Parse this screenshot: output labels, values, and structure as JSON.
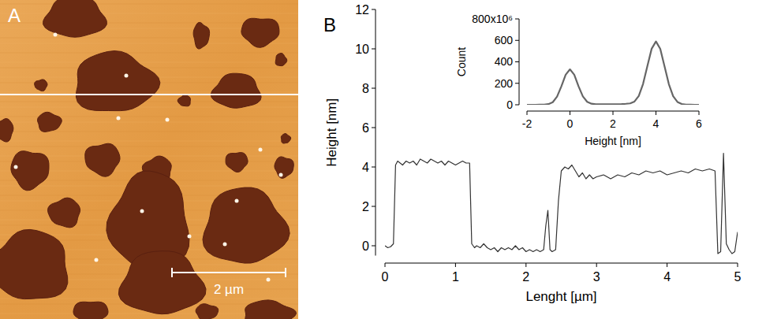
{
  "image": {
    "label": "A",
    "scale_bar": "2 µm"
  },
  "panel_label": "B",
  "chart_data": [
    {
      "type": "line",
      "x_label": "Lenght [µm]",
      "y_label": "Height [nm]",
      "x": [
        0,
        0.04,
        0.08,
        0.12,
        0.15,
        0.18,
        0.25,
        0.3,
        0.35,
        0.4,
        0.45,
        0.5,
        0.55,
        0.6,
        0.65,
        0.7,
        0.75,
        0.8,
        0.85,
        0.9,
        0.95,
        1.0,
        1.05,
        1.1,
        1.15,
        1.2,
        1.23,
        1.27,
        1.3,
        1.35,
        1.4,
        1.45,
        1.5,
        1.55,
        1.6,
        1.65,
        1.7,
        1.75,
        1.8,
        1.85,
        1.9,
        1.95,
        2.0,
        2.05,
        2.1,
        2.15,
        2.2,
        2.25,
        2.28,
        2.31,
        2.34,
        2.37,
        2.42,
        2.46,
        2.5,
        2.55,
        2.6,
        2.65,
        2.7,
        2.75,
        2.8,
        2.85,
        2.9,
        2.95,
        3.0,
        3.1,
        3.2,
        3.3,
        3.4,
        3.5,
        3.6,
        3.7,
        3.8,
        3.9,
        4.0,
        4.1,
        4.2,
        4.3,
        4.4,
        4.5,
        4.6,
        4.68,
        4.72,
        4.76,
        4.8,
        4.84,
        4.88,
        4.92,
        4.96,
        5.0
      ],
      "values": [
        0,
        -0.1,
        -0.05,
        0.1,
        4.1,
        4.3,
        4.1,
        4.3,
        4.2,
        4.3,
        4.1,
        4.4,
        4.3,
        4.2,
        4.4,
        4.3,
        4.2,
        4.3,
        4.1,
        4.3,
        4.2,
        4.1,
        4.2,
        4.3,
        4.2,
        4.2,
        0.1,
        -0.1,
        0,
        -0.1,
        0.1,
        -0.1,
        -0.2,
        -0.1,
        -0.3,
        -0.1,
        -0.2,
        -0.1,
        -0.2,
        0,
        -0.2,
        -0.1,
        -0.3,
        -0.2,
        -0.3,
        -0.2,
        -0.3,
        -0.2,
        1.0,
        1.8,
        -0.2,
        -0.3,
        -0.2,
        2.3,
        3.8,
        4.0,
        3.9,
        4.1,
        3.8,
        3.5,
        3.7,
        3.4,
        3.6,
        3.4,
        3.5,
        3.6,
        3.4,
        3.6,
        3.5,
        3.7,
        3.6,
        3.8,
        3.7,
        3.8,
        3.6,
        3.7,
        3.8,
        3.7,
        3.9,
        3.8,
        3.9,
        3.8,
        -0.4,
        -0.3,
        4.7,
        0.1,
        -0.2,
        -0.4,
        -0.3,
        0.7
      ],
      "color": "#333333",
      "xlim": [
        0,
        5
      ],
      "xticks": [
        0,
        1,
        2,
        3,
        4,
        5
      ],
      "ylim": [
        -0.5,
        12
      ],
      "yticks": [
        0,
        2,
        4,
        6,
        8,
        10,
        12
      ]
    },
    {
      "type": "line",
      "x_label": "Height [nm]",
      "y_label": "Count",
      "x": [
        -2,
        -1.8,
        -1.6,
        -1.4,
        -1.2,
        -1,
        -0.8,
        -0.6,
        -0.4,
        -0.2,
        0,
        0.2,
        0.4,
        0.6,
        0.8,
        1,
        1.2,
        1.4,
        1.6,
        1.8,
        2,
        2.2,
        2.4,
        2.6,
        2.8,
        3,
        3.2,
        3.4,
        3.6,
        3.8,
        4,
        4.2,
        4.4,
        4.6,
        4.8,
        5,
        5.2,
        5.4,
        5.6,
        5.8,
        6
      ],
      "values": [
        0,
        0,
        0,
        1,
        2,
        6,
        24,
        76,
        172,
        280,
        330,
        280,
        172,
        78,
        28,
        10,
        5,
        4,
        4,
        4,
        5,
        5,
        6,
        9,
        13,
        30,
        82,
        194,
        360,
        522,
        590,
        521,
        358,
        192,
        80,
        26,
        7,
        2,
        1,
        0,
        0
      ],
      "color": "#666666",
      "xlim": [
        -2,
        6
      ],
      "xticks": [
        -2,
        0,
        2,
        4,
        6
      ],
      "ylim": [
        0,
        800
      ],
      "yticks": [
        0,
        200,
        400,
        600,
        {
          "value": 800,
          "label": "800x10⁶"
        }
      ]
    }
  ]
}
